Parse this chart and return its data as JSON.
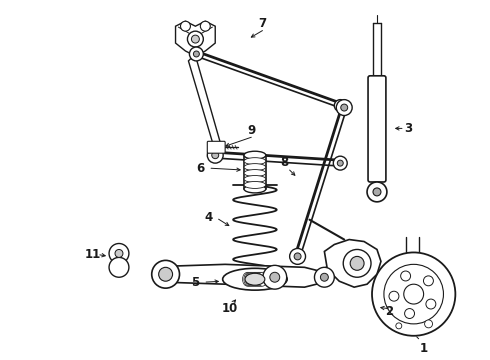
{
  "background_color": "#ffffff",
  "line_color": "#1a1a1a",
  "label_color": "#111111",
  "figure_width": 4.9,
  "figure_height": 3.6,
  "dpi": 100
}
